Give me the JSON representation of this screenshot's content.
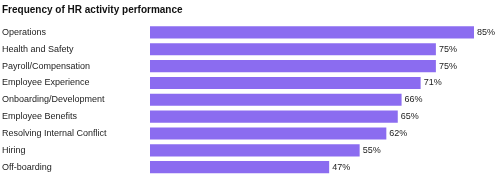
{
  "chart_data": {
    "type": "bar",
    "orientation": "horizontal",
    "title": "Frequency of HR activity performance",
    "categories": [
      "Operations",
      "Health and Safety",
      "Payroll/Compensation",
      "Employee Experience",
      "Onboarding/Development",
      "Employee Benefits",
      "Resolving Internal Conflict",
      "Hiring",
      "Off-boarding"
    ],
    "values": [
      85,
      75,
      75,
      71,
      66,
      65,
      62,
      55,
      47
    ],
    "value_labels": [
      "85%",
      "75%",
      "75%",
      "71%",
      "66%",
      "65%",
      "62%",
      "55%",
      "47%"
    ],
    "data_labels": true,
    "color": "#8b6cf0",
    "grid": false,
    "tick_labels": "y"
  }
}
